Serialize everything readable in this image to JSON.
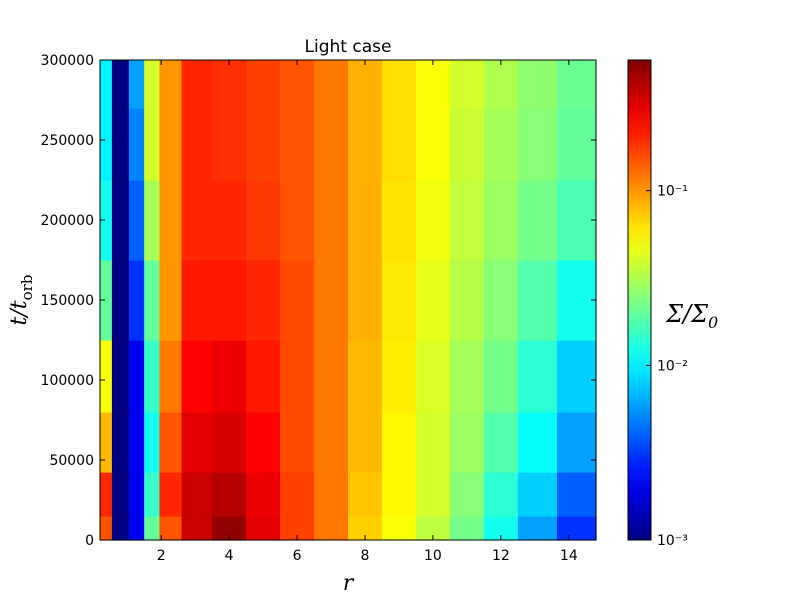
{
  "chart_data": {
    "type": "heatmap",
    "title": "Light case",
    "xlabel": "r",
    "ylabel": {
      "main": "t/t",
      "sub": "orb"
    },
    "colorbar_label": {
      "main": "Σ/Σ",
      "sub": "0"
    },
    "xlim": [
      0.2,
      14.8
    ],
    "ylim": [
      0,
      300000
    ],
    "xticks": [
      2,
      4,
      6,
      8,
      10,
      12,
      14
    ],
    "yticks": [
      0,
      50000,
      100000,
      150000,
      200000,
      250000,
      300000
    ],
    "colormap": "jet",
    "color_scale": "log",
    "clim": [
      0.001,
      0.56
    ],
    "cticks": [
      {
        "value": 0.001,
        "label": "10⁻³"
      },
      {
        "value": 0.01,
        "label": "10⁻²"
      },
      {
        "value": 0.1,
        "label": "10⁻¹"
      }
    ],
    "x": [
      0.3,
      0.8,
      1.3,
      1.7,
      2.2,
      3,
      4,
      5,
      6,
      7,
      8,
      9,
      10,
      11,
      12,
      13,
      14.3
    ],
    "y": [
      5000,
      25000,
      60000,
      100000,
      150000,
      200000,
      250000,
      290000
    ],
    "z": [
      [
        0.15,
        0.001,
        0.002,
        0.02,
        0.15,
        0.35,
        0.5,
        0.3,
        0.17,
        0.12,
        0.07,
        0.05,
        0.035,
        0.022,
        0.012,
        0.006,
        0.003
      ],
      [
        0.2,
        0.001,
        0.002,
        0.015,
        0.2,
        0.35,
        0.4,
        0.28,
        0.17,
        0.12,
        0.075,
        0.055,
        0.04,
        0.025,
        0.014,
        0.008,
        0.004
      ],
      [
        0.08,
        0.001,
        0.002,
        0.012,
        0.15,
        0.3,
        0.32,
        0.25,
        0.16,
        0.12,
        0.08,
        0.055,
        0.04,
        0.028,
        0.018,
        0.011,
        0.006
      ],
      [
        0.05,
        0.001,
        0.002,
        0.015,
        0.12,
        0.25,
        0.28,
        0.22,
        0.16,
        0.12,
        0.08,
        0.058,
        0.042,
        0.03,
        0.022,
        0.014,
        0.008
      ],
      [
        0.02,
        0.001,
        0.003,
        0.02,
        0.1,
        0.22,
        0.22,
        0.2,
        0.16,
        0.12,
        0.085,
        0.06,
        0.045,
        0.033,
        0.025,
        0.018,
        0.012
      ],
      [
        0.012,
        0.001,
        0.004,
        0.03,
        0.1,
        0.2,
        0.2,
        0.18,
        0.15,
        0.12,
        0.085,
        0.062,
        0.048,
        0.036,
        0.028,
        0.022,
        0.017
      ],
      [
        0.01,
        0.001,
        0.005,
        0.04,
        0.1,
        0.2,
        0.19,
        0.17,
        0.15,
        0.12,
        0.085,
        0.064,
        0.05,
        0.038,
        0.03,
        0.025,
        0.02
      ],
      [
        0.01,
        0.001,
        0.006,
        0.04,
        0.1,
        0.2,
        0.19,
        0.17,
        0.15,
        0.12,
        0.085,
        0.064,
        0.05,
        0.04,
        0.032,
        0.026,
        0.021
      ]
    ]
  }
}
